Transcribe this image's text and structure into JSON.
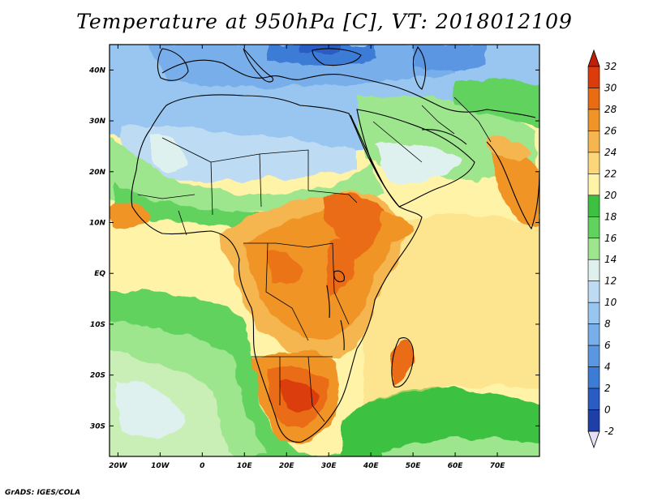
{
  "title": "Temperature at 950hPa [C], VT: 2018012109",
  "credit": "GrADS: IGES/COLA",
  "map": {
    "variable": "Temperature",
    "level": "950hPa",
    "units": "C",
    "valid_time": "2018012109",
    "region": "Africa and Middle East",
    "lon_range": [
      -22,
      80
    ],
    "lat_range": [
      -36,
      45
    ],
    "lon_ticks": [
      {
        "value": -20,
        "label": "20W"
      },
      {
        "value": -10,
        "label": "10W"
      },
      {
        "value": 0,
        "label": "0"
      },
      {
        "value": 10,
        "label": "10E"
      },
      {
        "value": 20,
        "label": "20E"
      },
      {
        "value": 30,
        "label": "30E"
      },
      {
        "value": 40,
        "label": "40E"
      },
      {
        "value": 50,
        "label": "50E"
      },
      {
        "value": 60,
        "label": "60E"
      },
      {
        "value": 70,
        "label": "70E"
      }
    ],
    "lat_ticks": [
      {
        "value": 40,
        "label": "40N"
      },
      {
        "value": 30,
        "label": "30N"
      },
      {
        "value": 20,
        "label": "20N"
      },
      {
        "value": 10,
        "label": "10N"
      },
      {
        "value": 0,
        "label": "EQ"
      },
      {
        "value": -10,
        "label": "10S"
      },
      {
        "value": -20,
        "label": "20S"
      },
      {
        "value": -30,
        "label": "30S"
      }
    ]
  },
  "colorbar": {
    "levels": [
      {
        "value": -2,
        "label": "-2",
        "color": "#1f1f8f"
      },
      {
        "value": 0,
        "label": "0",
        "color": "#1f3fa8"
      },
      {
        "value": 2,
        "label": "2",
        "color": "#2a5dc4"
      },
      {
        "value": 4,
        "label": "4",
        "color": "#3c7bd6"
      },
      {
        "value": 6,
        "label": "6",
        "color": "#5a96e2"
      },
      {
        "value": 8,
        "label": "8",
        "color": "#78afea"
      },
      {
        "value": 10,
        "label": "10",
        "color": "#98c6f0"
      },
      {
        "value": 12,
        "label": "12",
        "color": "#bddcf4"
      },
      {
        "value": 14,
        "label": "14",
        "color": "#dff1ee"
      },
      {
        "value": 16,
        "label": "16",
        "color": "#9ee68e"
      },
      {
        "value": 18,
        "label": "18",
        "color": "#62d25e"
      },
      {
        "value": 20,
        "label": "20",
        "color": "#3ec140"
      },
      {
        "value": 22,
        "label": "22",
        "color": "#fff3a8"
      },
      {
        "value": 24,
        "label": "24",
        "color": "#fbd779"
      },
      {
        "value": 26,
        "label": "26",
        "color": "#f5b54f"
      },
      {
        "value": 28,
        "label": "28",
        "color": "#f09427"
      },
      {
        "value": 30,
        "label": "30",
        "color": "#ea6c12"
      },
      {
        "value": 32,
        "label": "32",
        "color": "#dc3c0c"
      }
    ],
    "over_color": "#c0200a",
    "under_color": "#e6e0f6"
  }
}
